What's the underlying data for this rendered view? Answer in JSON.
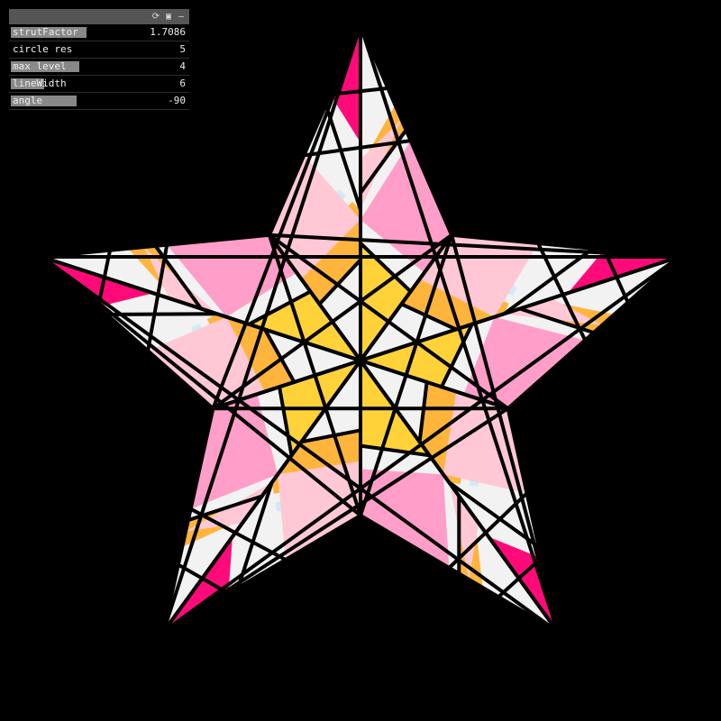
{
  "gui": {
    "header_icons": [
      "reset-icon",
      "save-icon",
      "minimize-icon"
    ],
    "controls": [
      {
        "label": "strutFactor",
        "value": "1.7086",
        "level": 0.43
      },
      {
        "label": "circle res",
        "value": "5",
        "level": 0.0
      },
      {
        "label": "max level",
        "value": "4",
        "level": 0.39
      },
      {
        "label": "lineWidth",
        "value": "6",
        "level": 0.19
      },
      {
        "label": "angle",
        "value": "-90",
        "level": 0.37
      }
    ]
  },
  "palette": {
    "background": "#000000",
    "outline": "#000000",
    "white": "#f2f2f2",
    "magenta": "#ff0a78",
    "pink": "#ff9ec8",
    "light_pink": "#ffc8d4",
    "orange": "#ffb43c",
    "yellow": "#ffd23a",
    "light_blue": "#d2eaf6",
    "lavender": "#d6cde8"
  }
}
